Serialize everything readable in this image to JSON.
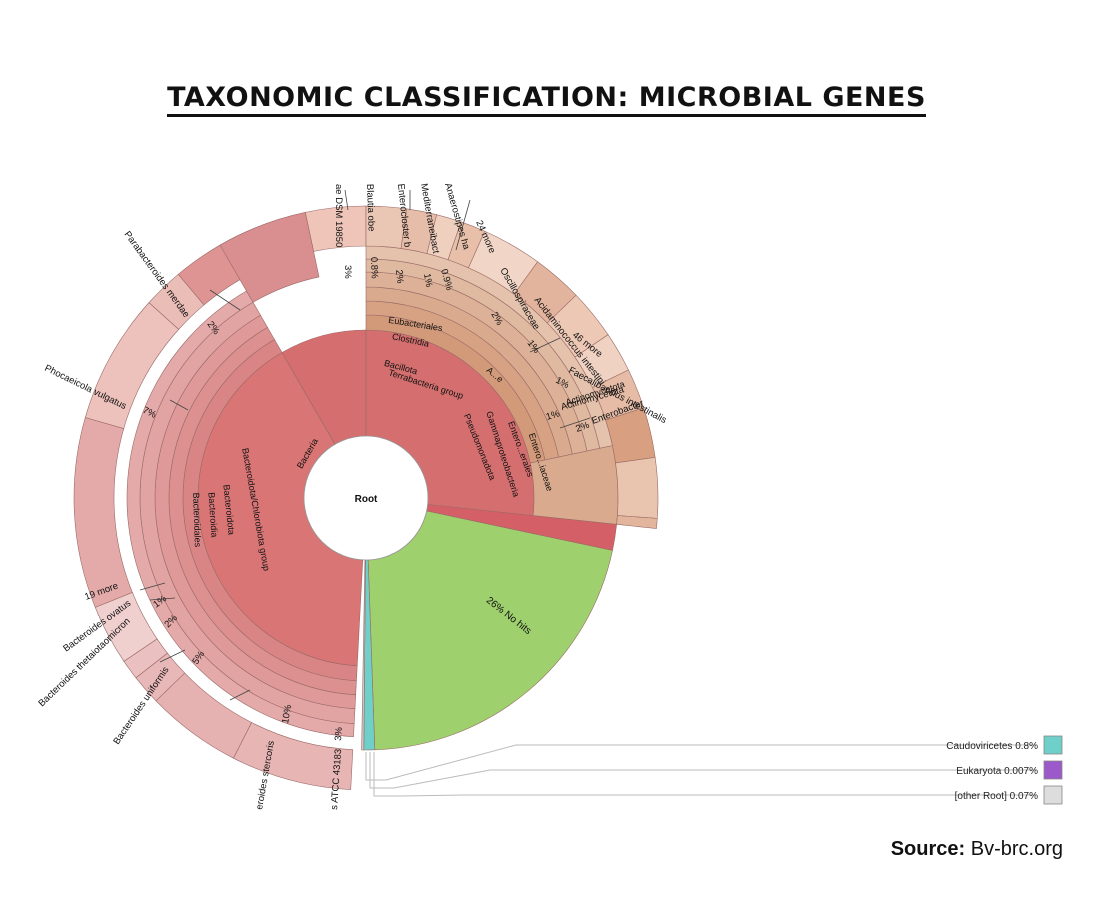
{
  "title": "TAXONOMIC CLASSIFICATION: MICROBIAL GENES",
  "source": {
    "label": "Source:",
    "value": "Bv-brc.org"
  },
  "chart_data": {
    "type": "sunburst",
    "center_label": "Root",
    "ring_labels": [
      {
        "text": "Bacteria"
      },
      {
        "text": "Bacteroidota/Chlorobiota group"
      },
      {
        "text": "Bacteroidota"
      },
      {
        "text": "Bacteroidia"
      },
      {
        "text": "Bacteroidales"
      },
      {
        "text": "Terrabacteria group"
      },
      {
        "text": "Bacillota"
      },
      {
        "text": "Clostridia"
      },
      {
        "text": "Eubacteriales"
      },
      {
        "text": "Pseudomonadota"
      },
      {
        "text": "Gammaproteobacteria"
      },
      {
        "text": "Entero...erales"
      },
      {
        "text": "Entero...iaceae"
      },
      {
        "text": "A...e"
      },
      {
        "text": "Actinomycetota"
      }
    ],
    "segments": [
      {
        "name": "No hits",
        "percent": "26%",
        "value": 26,
        "color": "#9ed06e"
      },
      {
        "name": "Caudoviricetes",
        "percent": "0.8%",
        "value": 0.8,
        "color": "#6fcfc9"
      },
      {
        "name": "Eukaryota",
        "percent": "0.007%",
        "value": 0.007,
        "color": "#9b59c9"
      },
      {
        "name": "[other Root]",
        "percent": "0.07%",
        "value": 0.07,
        "color": "#dddddd"
      }
    ],
    "outer_labels": [
      {
        "text": "Phocaeicola vulgatus",
        "percent": "7%"
      },
      {
        "text": "Parabacteroides merdae",
        "percent": "2%"
      },
      {
        "text": "ae DSM 19850",
        "percent": "3%"
      },
      {
        "text": "Blautia obe",
        "percent": "0.8%"
      },
      {
        "text": "Enterocloster b",
        "percent": "2%"
      },
      {
        "text": "Mediterraneibact",
        "percent": "1%"
      },
      {
        "text": "Anaerostipes ha",
        "percent": "0.9%"
      },
      {
        "text": "24 more",
        "percent": ""
      },
      {
        "text": "Oscillospiraceae",
        "percent": "2%"
      },
      {
        "text": "Acidaminococcus intestini",
        "percent": "1%"
      },
      {
        "text": "46 more",
        "percent": ""
      },
      {
        "text": "Faecalibacillus intestinalis",
        "percent": "1%"
      },
      {
        "text": "Actinomycetota",
        "percent": "1%"
      },
      {
        "text": "Enterobacter",
        "percent": "2%"
      },
      {
        "text": "19 more",
        "percent": ""
      },
      {
        "text": "Bacteroides ovatus",
        "percent": "1%"
      },
      {
        "text": "Bacteroides thetaiotaomicron",
        "percent": "2%"
      },
      {
        "text": "Bacteroides uniformis",
        "percent": "5%"
      },
      {
        "text": "eroides stercoris",
        "percent": "10%"
      },
      {
        "text": "s ATCC 43183",
        "percent": "3%"
      }
    ],
    "legend_placement": "bottom-right",
    "colors": {
      "bacteroidota": "#d97575",
      "bacillota": "#d39a7a",
      "no_hits": "#9ed06e"
    }
  }
}
